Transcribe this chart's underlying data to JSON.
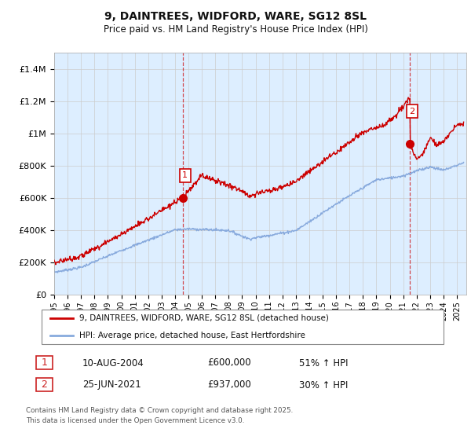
{
  "title": "9, DAINTREES, WIDFORD, WARE, SG12 8SL",
  "subtitle": "Price paid vs. HM Land Registry's House Price Index (HPI)",
  "ylabel_ticks": [
    "£0",
    "£200K",
    "£400K",
    "£600K",
    "£800K",
    "£1M",
    "£1.2M",
    "£1.4M"
  ],
  "ylim": [
    0,
    1500000
  ],
  "yticks": [
    0,
    200000,
    400000,
    600000,
    800000,
    1000000,
    1200000,
    1400000
  ],
  "sale1_date_x": 2004.6,
  "sale1_price": 600000,
  "sale1_label": "1",
  "sale2_date_x": 2021.5,
  "sale2_price": 937000,
  "sale2_label": "2",
  "red_line_color": "#cc0000",
  "blue_line_color": "#88aadd",
  "grid_color": "#cccccc",
  "plot_bg_color": "#ddeeff",
  "fig_bg_color": "#ffffff",
  "legend_label_red": "9, DAINTREES, WIDFORD, WARE, SG12 8SL (detached house)",
  "legend_label_blue": "HPI: Average price, detached house, East Hertfordshire",
  "ann1_date": "10-AUG-2004",
  "ann1_price": "£600,000",
  "ann1_pct": "51% ↑ HPI",
  "ann2_date": "25-JUN-2021",
  "ann2_price": "£937,000",
  "ann2_pct": "30% ↑ HPI",
  "footer": "Contains HM Land Registry data © Crown copyright and database right 2025.\nThis data is licensed under the Open Government Licence v3.0.",
  "xmin": 1995,
  "xmax": 2025.7
}
